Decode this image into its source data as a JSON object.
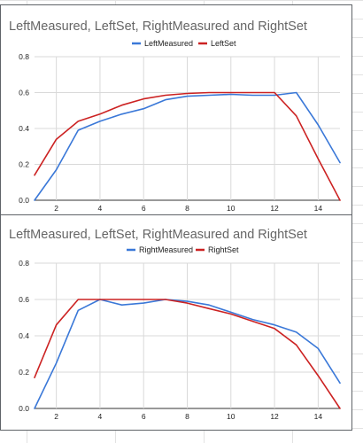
{
  "chart_data": [
    {
      "type": "line",
      "title": "LeftMeasured, LeftSet, RightMeasured and RightSet",
      "xlabel": "",
      "ylabel": "",
      "x": [
        1,
        2,
        3,
        4,
        5,
        6,
        7,
        8,
        9,
        10,
        11,
        12,
        13,
        14,
        15
      ],
      "xlim": [
        1,
        15
      ],
      "ylim": [
        0,
        0.8
      ],
      "x_ticks": [
        "2",
        "4",
        "6",
        "8",
        "10",
        "12",
        "14"
      ],
      "y_ticks": [
        "0.0",
        "0.2",
        "0.4",
        "0.6",
        "0.8"
      ],
      "grid": true,
      "legend_position": "top",
      "series": [
        {
          "name": "LeftMeasured",
          "color": "#3a78d8",
          "values": [
            0.0,
            0.17,
            0.39,
            0.44,
            0.48,
            0.51,
            0.56,
            0.58,
            0.585,
            0.59,
            0.585,
            0.585,
            0.6,
            0.42,
            0.21
          ]
        },
        {
          "name": "LeftSet",
          "color": "#cc2222",
          "values": [
            0.14,
            0.34,
            0.44,
            0.48,
            0.53,
            0.565,
            0.585,
            0.595,
            0.6,
            0.6,
            0.6,
            0.6,
            0.47,
            0.23,
            0.0
          ]
        }
      ]
    },
    {
      "type": "line",
      "title": "LeftMeasured, LeftSet, RightMeasured and RightSet",
      "xlabel": "",
      "ylabel": "",
      "x": [
        1,
        2,
        3,
        4,
        5,
        6,
        7,
        8,
        9,
        10,
        11,
        12,
        13,
        14,
        15
      ],
      "xlim": [
        1,
        15
      ],
      "ylim": [
        0,
        0.8
      ],
      "x_ticks": [
        "2",
        "4",
        "6",
        "8",
        "10",
        "12",
        "14"
      ],
      "y_ticks": [
        "0.0",
        "0.2",
        "0.4",
        "0.6",
        "0.8"
      ],
      "grid": true,
      "legend_position": "top",
      "series": [
        {
          "name": "RightMeasured",
          "color": "#3a78d8",
          "values": [
            0.0,
            0.25,
            0.54,
            0.6,
            0.57,
            0.58,
            0.6,
            0.59,
            0.57,
            0.53,
            0.49,
            0.46,
            0.42,
            0.33,
            0.14
          ]
        },
        {
          "name": "RightSet",
          "color": "#cc2222",
          "values": [
            0.17,
            0.46,
            0.6,
            0.6,
            0.6,
            0.6,
            0.6,
            0.58,
            0.55,
            0.52,
            0.48,
            0.44,
            0.35,
            0.18,
            0.0
          ]
        }
      ]
    }
  ]
}
